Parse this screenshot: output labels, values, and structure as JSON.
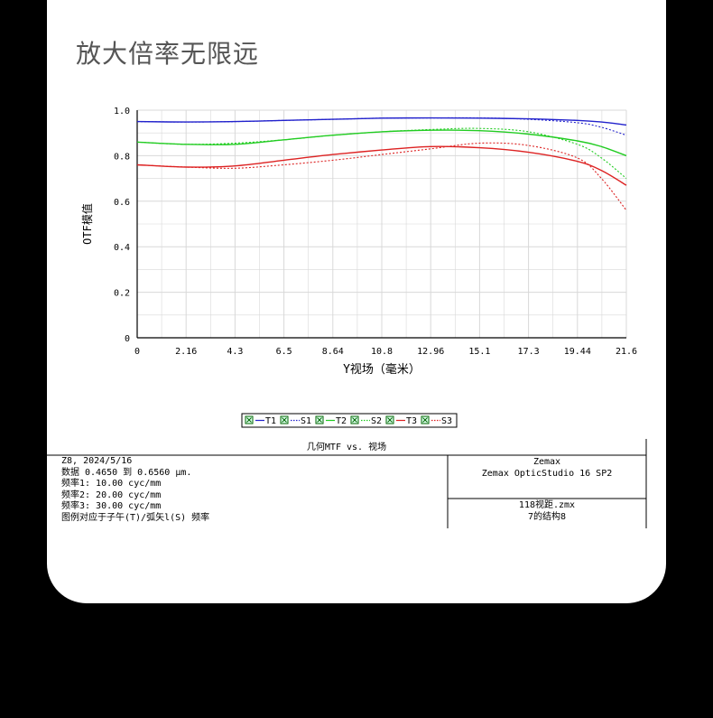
{
  "page": {
    "title": "放大倍率无限远"
  },
  "colors": {
    "T1": "#2222cc",
    "S1": "#2222cc",
    "T2": "#22cc22",
    "S2": "#22cc22",
    "T3": "#dd2222",
    "S3": "#dd2222",
    "grid": "#d8d8d8"
  },
  "chart_data": {
    "type": "line",
    "title": "几何MTF vs. 视场",
    "xlabel": "Y视场（毫米）",
    "ylabel": "OTF模值",
    "xlim": [
      0,
      21.6
    ],
    "ylim": [
      0,
      1.0
    ],
    "xticks": [
      "0",
      "2.16",
      "4.3",
      "6.5",
      "8.64",
      "10.8",
      "12.96",
      "15.1",
      "17.3",
      "19.44",
      "21.6"
    ],
    "yticks": [
      "0",
      "0.2",
      "0.4",
      "0.6",
      "0.8",
      "1.0"
    ],
    "grid": true,
    "legend_position": "bottom-center",
    "x": [
      0,
      2.16,
      4.32,
      6.48,
      8.64,
      10.8,
      12.96,
      15.12,
      17.28,
      19.44,
      20.5,
      21.6
    ],
    "series": [
      {
        "name": "T1",
        "style": "solid",
        "values": [
          0.95,
          0.948,
          0.95,
          0.955,
          0.96,
          0.965,
          0.966,
          0.965,
          0.962,
          0.955,
          0.948,
          0.935
        ]
      },
      {
        "name": "S1",
        "style": "dotted",
        "values": [
          0.95,
          0.948,
          0.95,
          0.955,
          0.96,
          0.965,
          0.966,
          0.966,
          0.96,
          0.945,
          0.925,
          0.89
        ]
      },
      {
        "name": "T2",
        "style": "solid",
        "values": [
          0.86,
          0.85,
          0.85,
          0.87,
          0.89,
          0.905,
          0.912,
          0.91,
          0.895,
          0.865,
          0.84,
          0.8
        ]
      },
      {
        "name": "S2",
        "style": "dotted",
        "values": [
          0.86,
          0.85,
          0.855,
          0.87,
          0.89,
          0.905,
          0.915,
          0.92,
          0.905,
          0.85,
          0.79,
          0.7
        ]
      },
      {
        "name": "T3",
        "style": "solid",
        "values": [
          0.76,
          0.75,
          0.755,
          0.78,
          0.805,
          0.825,
          0.84,
          0.835,
          0.815,
          0.775,
          0.735,
          0.67
        ]
      },
      {
        "name": "S3",
        "style": "dotted",
        "values": [
          0.76,
          0.75,
          0.745,
          0.76,
          0.78,
          0.805,
          0.83,
          0.855,
          0.845,
          0.79,
          0.7,
          0.56
        ]
      }
    ]
  },
  "info": {
    "header": "几何MTF vs. 视场",
    "left_lines": [
      "Z8, 2024/5/16",
      "数据 0.4650 到 0.6560 μm.",
      "频率1:   10.00 cyc/mm",
      "频率2:   20.00 cyc/mm",
      "频率3:   30.00 cyc/mm",
      "图例对应于子午(T)/弧矢l(S) 频率"
    ],
    "right_top": [
      "Zemax",
      "Zemax OpticStudio 16 SP2"
    ],
    "right_bottom": [
      "118视距.zmx",
      "7的结构8"
    ]
  }
}
